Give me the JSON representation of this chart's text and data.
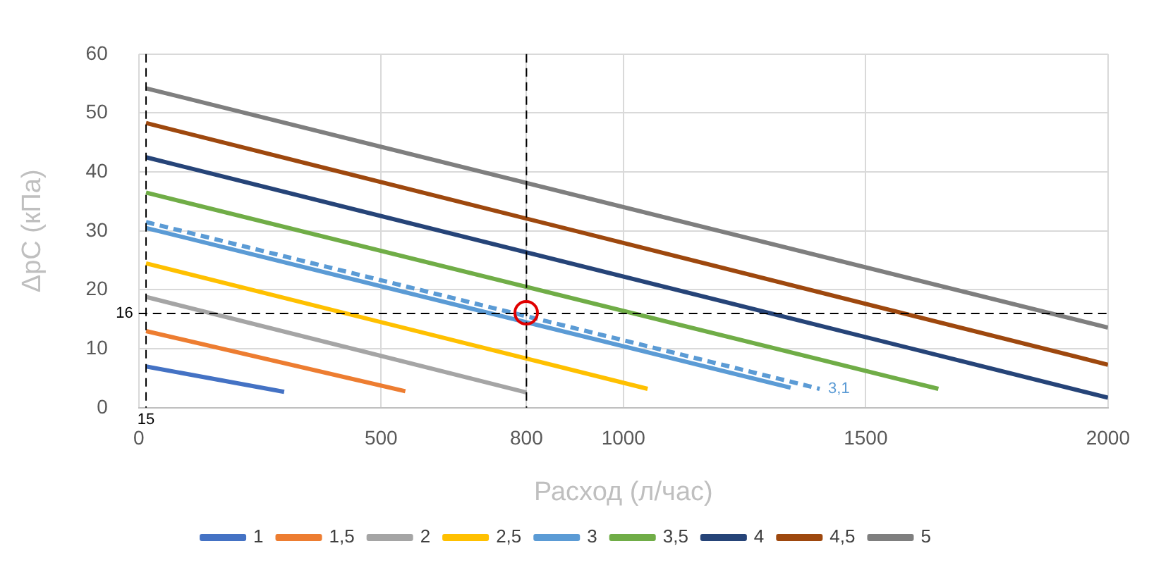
{
  "chart_data": {
    "type": "line",
    "xlabel": "Расход (л/час)",
    "ylabel": "ΔpC (кПа)",
    "xlim": [
      0,
      2000
    ],
    "xticks": [
      0,
      500,
      800,
      1000,
      1500,
      2000
    ],
    "ylim": [
      0,
      60
    ],
    "yticks": [
      0,
      10,
      20,
      30,
      40,
      50,
      60
    ],
    "grid": true,
    "legend": "bottom",
    "marker": "none",
    "series": [
      {
        "name": "1",
        "color": "#4472c4",
        "x": [
          15,
          300
        ],
        "values": [
          7,
          2.7
        ]
      },
      {
        "name": "1,5",
        "color": "#ed7d31",
        "x": [
          15,
          550
        ],
        "values": [
          13,
          2.8
        ]
      },
      {
        "name": "2",
        "color": "#a5a5a5",
        "x": [
          15,
          800
        ],
        "values": [
          18.8,
          2.6
        ]
      },
      {
        "name": "2,5",
        "color": "#ffc000",
        "x": [
          15,
          1050
        ],
        "values": [
          24.5,
          3.2
        ]
      },
      {
        "name": "3",
        "color": "#5b9bd5",
        "x": [
          15,
          1345
        ],
        "values": [
          30.5,
          3.4
        ]
      },
      {
        "name": "3,5",
        "color": "#70ad47",
        "x": [
          15,
          1650
        ],
        "values": [
          36.5,
          3.2
        ]
      },
      {
        "name": "4",
        "color": "#264478",
        "x": [
          15,
          2000
        ],
        "values": [
          42.5,
          1.7
        ]
      },
      {
        "name": "4,5",
        "color": "#9e480e",
        "x": [
          15,
          2000
        ],
        "values": [
          48.3,
          7.3
        ]
      },
      {
        "name": "5",
        "color": "#7f7f7f",
        "x": [
          15,
          2000
        ],
        "values": [
          54.2,
          13.6
        ]
      },
      {
        "name": "3,1",
        "color": "#5b9bd5",
        "line_style": "dashed",
        "x": [
          15,
          1405
        ],
        "values": [
          31.5,
          3.2
        ]
      }
    ],
    "ref_lines": [
      {
        "axis": "x",
        "value": 15,
        "label": "15",
        "color": "#000000",
        "line_style": "dashed"
      },
      {
        "axis": "x",
        "value": 800,
        "label": null,
        "color": "#000000",
        "line_style": "dashed"
      },
      {
        "axis": "y",
        "value": 16,
        "label": "16",
        "color": "#000000",
        "line_style": "dashed"
      }
    ]
  }
}
